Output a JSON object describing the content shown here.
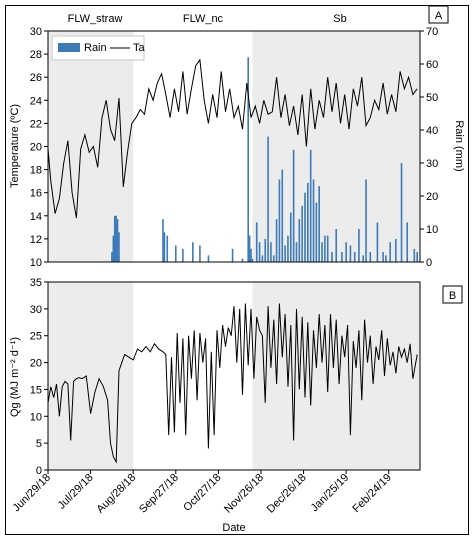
{
  "figure": {
    "period_labels": [
      "FLW_straw",
      "FLW_nc",
      "Sb"
    ]
  },
  "chart_data": [
    {
      "type": "line",
      "panel_label": "A",
      "xlabel": "",
      "ylabel": "Temperature (ºC)",
      "ylim": [
        10,
        30
      ],
      "yticks": [
        10,
        12,
        14,
        16,
        18,
        20,
        22,
        24,
        26,
        28,
        30
      ],
      "y2label": "Rain (mm)",
      "y2lim": [
        0,
        70
      ],
      "y2ticks": [
        0,
        10,
        20,
        30,
        40,
        50,
        60,
        70
      ],
      "legend": {
        "placement": "top-left",
        "entries": [
          "Rain",
          "Ta"
        ]
      },
      "colors": {
        "rain": "#3d7ab8",
        "ta": "#000000",
        "shade": "#ececec"
      },
      "shaded_spans": [
        [
          "2018-06-29",
          "2018-08-28"
        ],
        [
          "2018-11-20",
          "2019-03-18"
        ]
      ],
      "series": [
        {
          "name": "Ta",
          "kind": "line",
          "axis": "left",
          "x": [
            "2018-06-29",
            "2018-07-01",
            "2018-07-04",
            "2018-07-07",
            "2018-07-10",
            "2018-07-13",
            "2018-07-16",
            "2018-07-19",
            "2018-07-22",
            "2018-07-25",
            "2018-07-28",
            "2018-07-31",
            "2018-08-03",
            "2018-08-06",
            "2018-08-09",
            "2018-08-12",
            "2018-08-15",
            "2018-08-18",
            "2018-08-21",
            "2018-08-24",
            "2018-08-27",
            "2018-08-30",
            "2018-09-02",
            "2018-09-05",
            "2018-09-08",
            "2018-09-11",
            "2018-09-14",
            "2018-09-17",
            "2018-09-20",
            "2018-09-23",
            "2018-09-26",
            "2018-09-29",
            "2018-10-02",
            "2018-10-05",
            "2018-10-08",
            "2018-10-11",
            "2018-10-14",
            "2018-10-17",
            "2018-10-20",
            "2018-10-23",
            "2018-10-26",
            "2018-10-29",
            "2018-11-01",
            "2018-11-04",
            "2018-11-07",
            "2018-11-10",
            "2018-11-13",
            "2018-11-16",
            "2018-11-19",
            "2018-11-22",
            "2018-11-25",
            "2018-11-28",
            "2018-12-01",
            "2018-12-04",
            "2018-12-07",
            "2018-12-10",
            "2018-12-13",
            "2018-12-16",
            "2018-12-19",
            "2018-12-22",
            "2018-12-25",
            "2018-12-28",
            "2018-12-31",
            "2019-01-03",
            "2019-01-06",
            "2019-01-09",
            "2019-01-12",
            "2019-01-15",
            "2019-01-18",
            "2019-01-21",
            "2019-01-24",
            "2019-01-27",
            "2019-01-30",
            "2019-02-02",
            "2019-02-05",
            "2019-02-08",
            "2019-02-11",
            "2019-02-14",
            "2019-02-17",
            "2019-02-20",
            "2019-02-23",
            "2019-02-26",
            "2019-03-01",
            "2019-03-04",
            "2019-03-07",
            "2019-03-10",
            "2019-03-13",
            "2019-03-16"
          ],
          "values": [
            19.8,
            17.0,
            14.2,
            15.5,
            18.5,
            20.5,
            16.0,
            13.8,
            19.8,
            21.0,
            19.5,
            20.0,
            18.2,
            22.5,
            24.0,
            21.5,
            20.5,
            24.2,
            16.5,
            19.5,
            22.0,
            22.5,
            23.2,
            22.8,
            25.0,
            24.0,
            25.5,
            26.3,
            24.5,
            22.5,
            25.0,
            23.0,
            26.5,
            22.8,
            25.0,
            27.0,
            27.5,
            24.0,
            22.0,
            24.5,
            22.5,
            26.5,
            23.0,
            25.0,
            22.5,
            23.5,
            21.5,
            25.5,
            22.5,
            23.5,
            22.0,
            24.0,
            22.8,
            23.0,
            26.0,
            22.5,
            24.5,
            21.8,
            23.5,
            21.0,
            24.5,
            20.0,
            25.0,
            21.5,
            24.0,
            22.5,
            26.0,
            23.0,
            25.5,
            22.0,
            24.5,
            21.5,
            25.0,
            23.5,
            26.0,
            21.8,
            22.5,
            24.0,
            23.2,
            25.5,
            22.8,
            24.5,
            23.0,
            26.5,
            25.0,
            26.0,
            24.5,
            25.0
          ]
        },
        {
          "name": "Rain",
          "kind": "bar",
          "axis": "right",
          "x": [
            "2018-08-13",
            "2018-08-14",
            "2018-08-15",
            "2018-08-16",
            "2018-08-17",
            "2018-08-18",
            "2018-09-18",
            "2018-09-19",
            "2018-09-21",
            "2018-09-27",
            "2018-10-02",
            "2018-10-09",
            "2018-10-14",
            "2018-10-20",
            "2018-11-06",
            "2018-11-13",
            "2018-11-17",
            "2018-11-18",
            "2018-11-19",
            "2018-11-20",
            "2018-11-23",
            "2018-11-25",
            "2018-11-27",
            "2018-11-29",
            "2018-12-01",
            "2018-12-03",
            "2018-12-05",
            "2018-12-07",
            "2018-12-09",
            "2018-12-11",
            "2018-12-13",
            "2018-12-15",
            "2018-12-17",
            "2018-12-19",
            "2018-12-21",
            "2018-12-23",
            "2018-12-25",
            "2018-12-27",
            "2018-12-29",
            "2018-12-31",
            "2019-01-02",
            "2019-01-04",
            "2019-01-06",
            "2019-01-08",
            "2019-01-10",
            "2019-01-12",
            "2019-01-15",
            "2019-01-18",
            "2019-01-22",
            "2019-01-25",
            "2019-01-28",
            "2019-01-31",
            "2019-02-03",
            "2019-02-06",
            "2019-02-08",
            "2019-02-11",
            "2019-02-16",
            "2019-02-20",
            "2019-02-22",
            "2019-02-25",
            "2019-03-01",
            "2019-03-05",
            "2019-03-09",
            "2019-03-14",
            "2019-03-16"
          ],
          "values": [
            3,
            8,
            14,
            14,
            13,
            9,
            13,
            9,
            8,
            5,
            4,
            6,
            5,
            2,
            4,
            1,
            62,
            8,
            4,
            1,
            12,
            6,
            2,
            7,
            38,
            6,
            2,
            13,
            25,
            28,
            5,
            8,
            15,
            34,
            6,
            13,
            17,
            21,
            24,
            34,
            25,
            18,
            23,
            6,
            8,
            8,
            3,
            10,
            3,
            6,
            5,
            3,
            10,
            2,
            25,
            3,
            12,
            3,
            2,
            6,
            7,
            30,
            12,
            4,
            3
          ]
        }
      ]
    },
    {
      "type": "line",
      "panel_label": "B",
      "xlabel": "Date",
      "ylabel": "Qg (MJ m⁻² d⁻¹)",
      "ylim": [
        0,
        35
      ],
      "yticks": [
        0,
        5,
        10,
        15,
        20,
        25,
        30,
        35
      ],
      "xlim": [
        "2018-06-29",
        "2019-03-18"
      ],
      "xtick_labels": [
        "Jun/29/18",
        "Jul/29/18",
        "Aug/28/18",
        "Sep/27/18",
        "Oct/27/18",
        "Nov/26/18",
        "Dec/26/18",
        "Jan/25/19",
        "Feb/24/19"
      ],
      "xtick_dates": [
        "2018-06-29",
        "2018-07-29",
        "2018-08-28",
        "2018-09-27",
        "2018-10-27",
        "2018-11-26",
        "2018-12-26",
        "2019-01-25",
        "2019-02-24"
      ],
      "colors": {
        "line": "#000000",
        "shade": "#ececec"
      },
      "shaded_spans": [
        [
          "2018-06-29",
          "2018-08-28"
        ],
        [
          "2018-11-20",
          "2019-03-18"
        ]
      ],
      "series": [
        {
          "name": "Qg",
          "kind": "line",
          "x": [
            "2018-06-29",
            "2018-07-01",
            "2018-07-03",
            "2018-07-05",
            "2018-07-07",
            "2018-07-09",
            "2018-07-11",
            "2018-07-13",
            "2018-07-15",
            "2018-07-17",
            "2018-07-19",
            "2018-07-21",
            "2018-07-23",
            "2018-07-26",
            "2018-07-29",
            "2018-08-01",
            "2018-08-04",
            "2018-08-07",
            "2018-08-10",
            "2018-08-12",
            "2018-08-14",
            "2018-08-16",
            "2018-08-18",
            "2018-08-20",
            "2018-08-22",
            "2018-08-25",
            "2018-08-28",
            "2018-08-31",
            "2018-09-03",
            "2018-09-06",
            "2018-09-09",
            "2018-09-12",
            "2018-09-15",
            "2018-09-18",
            "2018-09-20",
            "2018-09-22",
            "2018-09-24",
            "2018-09-26",
            "2018-09-28",
            "2018-09-30",
            "2018-10-02",
            "2018-10-04",
            "2018-10-06",
            "2018-10-08",
            "2018-10-10",
            "2018-10-12",
            "2018-10-14",
            "2018-10-16",
            "2018-10-18",
            "2018-10-20",
            "2018-10-22",
            "2018-10-24",
            "2018-10-26",
            "2018-10-28",
            "2018-10-30",
            "2018-11-01",
            "2018-11-03",
            "2018-11-05",
            "2018-11-07",
            "2018-11-09",
            "2018-11-11",
            "2018-11-13",
            "2018-11-15",
            "2018-11-17",
            "2018-11-19",
            "2018-11-21",
            "2018-11-23",
            "2018-11-25",
            "2018-11-27",
            "2018-11-29",
            "2018-12-01",
            "2018-12-03",
            "2018-12-05",
            "2018-12-07",
            "2018-12-09",
            "2018-12-11",
            "2018-12-13",
            "2018-12-15",
            "2018-12-17",
            "2018-12-19",
            "2018-12-21",
            "2018-12-23",
            "2018-12-25",
            "2018-12-27",
            "2018-12-29",
            "2018-12-31",
            "2019-01-02",
            "2019-01-04",
            "2019-01-06",
            "2019-01-08",
            "2019-01-10",
            "2019-01-12",
            "2019-01-14",
            "2019-01-16",
            "2019-01-18",
            "2019-01-20",
            "2019-01-22",
            "2019-01-24",
            "2019-01-26",
            "2019-01-28",
            "2019-01-30",
            "2019-02-01",
            "2019-02-03",
            "2019-02-05",
            "2019-02-07",
            "2019-02-09",
            "2019-02-11",
            "2019-02-13",
            "2019-02-15",
            "2019-02-17",
            "2019-02-19",
            "2019-02-21",
            "2019-02-23",
            "2019-02-25",
            "2019-02-27",
            "2019-03-01",
            "2019-03-03",
            "2019-03-05",
            "2019-03-07",
            "2019-03-09",
            "2019-03-11",
            "2019-03-13",
            "2019-03-16"
          ],
          "values": [
            12.5,
            15.5,
            13.5,
            16.0,
            10.0,
            15.5,
            16.5,
            16.0,
            5.5,
            16.5,
            17.0,
            17.2,
            17.0,
            17.5,
            10.5,
            14.5,
            17.0,
            15.5,
            13.0,
            5.0,
            2.5,
            1.5,
            18.5,
            20.0,
            21.5,
            21.0,
            20.5,
            22.5,
            22.0,
            23.0,
            22.0,
            23.5,
            22.5,
            22.0,
            21.5,
            6.5,
            21.0,
            7.0,
            25.5,
            12.5,
            24.5,
            6.5,
            25.0,
            17.0,
            26.0,
            13.0,
            25.5,
            20.0,
            24.5,
            4.0,
            22.0,
            6.5,
            26.0,
            19.0,
            27.0,
            23.0,
            26.5,
            25.0,
            30.5,
            20.0,
            30.0,
            14.0,
            31.0,
            19.5,
            30.0,
            17.0,
            28.5,
            26.0,
            25.0,
            12.5,
            30.5,
            19.0,
            28.0,
            16.0,
            31.0,
            21.0,
            29.0,
            15.5,
            27.0,
            5.5,
            30.0,
            15.0,
            28.5,
            13.5,
            27.5,
            12.0,
            26.0,
            19.0,
            29.0,
            20.0,
            27.0,
            14.5,
            29.0,
            19.0,
            28.0,
            16.0,
            25.0,
            21.0,
            27.0,
            6.5,
            24.0,
            19.0,
            26.0,
            13.0,
            28.0,
            20.0,
            25.0,
            16.0,
            23.0,
            20.5,
            26.0,
            17.5,
            24.5,
            19.5,
            22.0,
            18.0,
            23.0,
            21.0,
            22.5,
            20.0,
            23.5,
            17.0,
            21.5
          ]
        }
      ]
    }
  ]
}
